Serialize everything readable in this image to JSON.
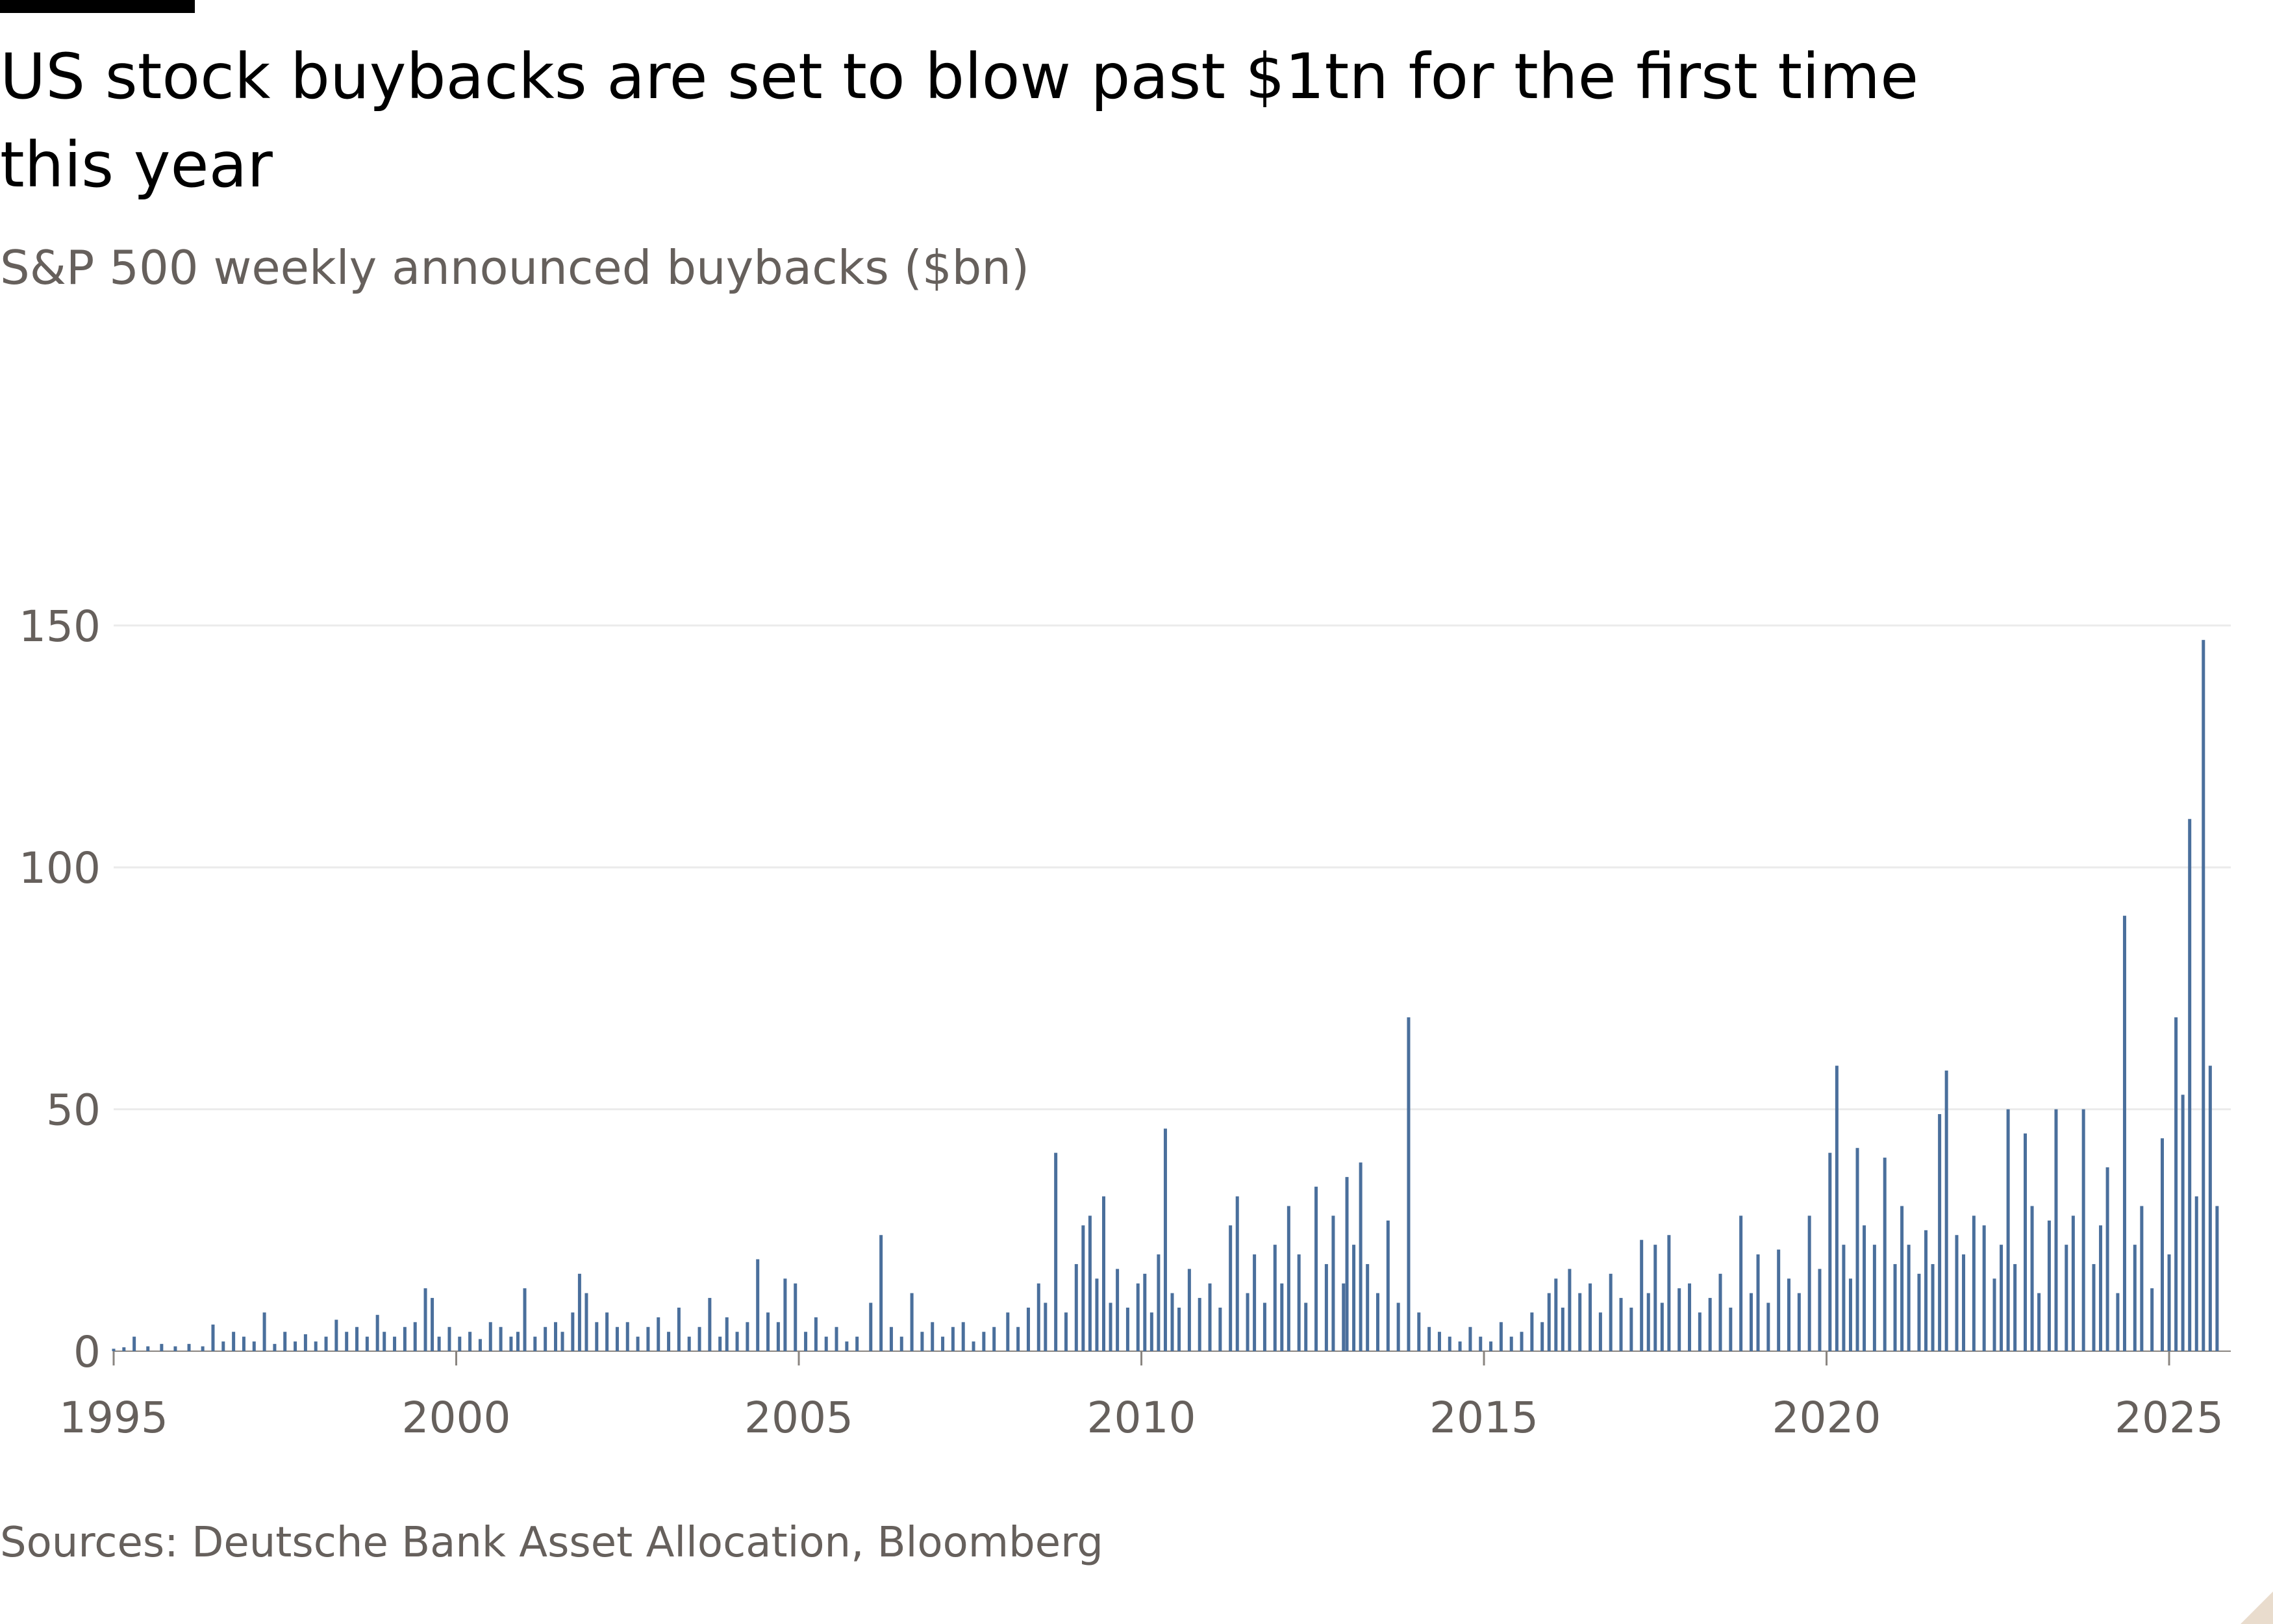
{
  "title": "US stock buybacks are set to blow past $1tn for the first time this year",
  "subtitle": "S&P 500 weekly announced buybacks ($bn)",
  "source": "Sources: Deutsche Bank Asset Allocation, Bloomberg",
  "colors": {
    "bar": "#4a6f9c",
    "grid": "#ebebeb",
    "axis_text": "#66605c",
    "title": "#000000",
    "accent_bar": "#000000",
    "corner_mark": "#e9dccd"
  },
  "chart_data": {
    "type": "bar",
    "title": "US stock buybacks are set to blow past $1tn for the first time this year",
    "subtitle": "S&P 500 weekly announced buybacks ($bn)",
    "xlabel": "",
    "ylabel": "",
    "xlim": [
      1995.0,
      2025.9
    ],
    "ylim": [
      0,
      192
    ],
    "y_ticks": [
      0,
      50,
      100,
      150
    ],
    "x_ticks": [
      1995,
      2000,
      2005,
      2010,
      2015,
      2020,
      2025
    ],
    "grid": true,
    "legend": "none",
    "series": [
      {
        "values": [
          [
            1995.0,
            0.5
          ],
          [
            1995.15,
            0.8
          ],
          [
            1995.3,
            3
          ],
          [
            1995.5,
            1
          ],
          [
            1995.7,
            1.5
          ],
          [
            1995.9,
            1
          ],
          [
            1996.1,
            1.5
          ],
          [
            1996.3,
            1
          ],
          [
            1996.45,
            5.5
          ],
          [
            1996.6,
            2
          ],
          [
            1996.75,
            4
          ],
          [
            1996.9,
            3
          ],
          [
            1997.05,
            2
          ],
          [
            1997.2,
            8
          ],
          [
            1997.35,
            1.5
          ],
          [
            1997.5,
            4
          ],
          [
            1997.65,
            2
          ],
          [
            1997.8,
            3.5
          ],
          [
            1997.95,
            2
          ],
          [
            1998.1,
            3
          ],
          [
            1998.25,
            6.5
          ],
          [
            1998.4,
            4
          ],
          [
            1998.55,
            5
          ],
          [
            1998.7,
            3
          ],
          [
            1998.85,
            7.5
          ],
          [
            1998.95,
            4
          ],
          [
            1999.1,
            3
          ],
          [
            1999.25,
            5
          ],
          [
            1999.4,
            6
          ],
          [
            1999.55,
            13
          ],
          [
            1999.65,
            11
          ],
          [
            1999.75,
            3
          ],
          [
            1999.9,
            5
          ],
          [
            2000.05,
            3
          ],
          [
            2000.2,
            4
          ],
          [
            2000.35,
            2.5
          ],
          [
            2000.5,
            6
          ],
          [
            2000.65,
            5
          ],
          [
            2000.8,
            3
          ],
          [
            2000.9,
            4
          ],
          [
            2001.0,
            13
          ],
          [
            2001.15,
            3
          ],
          [
            2001.3,
            5
          ],
          [
            2001.45,
            6
          ],
          [
            2001.55,
            4
          ],
          [
            2001.7,
            8
          ],
          [
            2001.8,
            16
          ],
          [
            2001.9,
            12
          ],
          [
            2002.05,
            6
          ],
          [
            2002.2,
            8
          ],
          [
            2002.35,
            5
          ],
          [
            2002.5,
            6
          ],
          [
            2002.65,
            3
          ],
          [
            2002.8,
            5
          ],
          [
            2002.95,
            7
          ],
          [
            2003.1,
            4
          ],
          [
            2003.25,
            9
          ],
          [
            2003.4,
            3
          ],
          [
            2003.55,
            5
          ],
          [
            2003.7,
            11
          ],
          [
            2003.85,
            3
          ],
          [
            2003.95,
            7
          ],
          [
            2004.1,
            4
          ],
          [
            2004.25,
            6
          ],
          [
            2004.4,
            19
          ],
          [
            2004.55,
            8
          ],
          [
            2004.7,
            6
          ],
          [
            2004.8,
            15
          ],
          [
            2004.95,
            14
          ],
          [
            2005.1,
            4
          ],
          [
            2005.25,
            7
          ],
          [
            2005.4,
            3
          ],
          [
            2005.55,
            5
          ],
          [
            2005.7,
            2
          ],
          [
            2005.85,
            3
          ],
          [
            2006.05,
            10
          ],
          [
            2006.2,
            24
          ],
          [
            2006.35,
            5
          ],
          [
            2006.5,
            3
          ],
          [
            2006.65,
            12
          ],
          [
            2006.8,
            4
          ],
          [
            2006.95,
            6
          ],
          [
            2007.1,
            3
          ],
          [
            2007.25,
            5
          ],
          [
            2007.4,
            6
          ],
          [
            2007.55,
            2
          ],
          [
            2007.7,
            4
          ],
          [
            2007.85,
            5
          ],
          [
            2008.05,
            8
          ],
          [
            2008.2,
            5
          ],
          [
            2008.35,
            9
          ],
          [
            2008.5,
            14
          ],
          [
            2008.6,
            10
          ],
          [
            2008.75,
            41
          ],
          [
            2008.9,
            8
          ],
          [
            2009.05,
            18
          ],
          [
            2009.15,
            26
          ],
          [
            2009.25,
            28
          ],
          [
            2009.35,
            15
          ],
          [
            2009.45,
            32
          ],
          [
            2009.55,
            10
          ],
          [
            2009.65,
            17
          ],
          [
            2009.8,
            9
          ],
          [
            2009.95,
            14
          ],
          [
            2010.05,
            16
          ],
          [
            2010.15,
            8
          ],
          [
            2010.25,
            20
          ],
          [
            2010.35,
            46
          ],
          [
            2010.45,
            12
          ],
          [
            2010.55,
            9
          ],
          [
            2010.7,
            17
          ],
          [
            2010.85,
            11
          ],
          [
            2011.0,
            14
          ],
          [
            2011.15,
            9
          ],
          [
            2011.3,
            26
          ],
          [
            2011.4,
            32
          ],
          [
            2011.55,
            12
          ],
          [
            2011.65,
            20
          ],
          [
            2011.8,
            10
          ],
          [
            2011.95,
            22
          ],
          [
            2012.05,
            14
          ],
          [
            2012.15,
            30
          ],
          [
            2012.3,
            20
          ],
          [
            2012.4,
            10
          ],
          [
            2012.55,
            34
          ],
          [
            2012.7,
            18
          ],
          [
            2012.8,
            28
          ],
          [
            2012.95,
            14
          ],
          [
            2013.0,
            36
          ],
          [
            2013.1,
            22
          ],
          [
            2013.2,
            39
          ],
          [
            2013.3,
            18
          ],
          [
            2013.45,
            12
          ],
          [
            2013.6,
            27
          ],
          [
            2013.75,
            10
          ],
          [
            2013.9,
            69
          ],
          [
            2014.05,
            8
          ],
          [
            2014.2,
            5
          ],
          [
            2014.35,
            4
          ],
          [
            2014.5,
            3
          ],
          [
            2014.65,
            2
          ],
          [
            2014.8,
            5
          ],
          [
            2014.95,
            3
          ],
          [
            2015.1,
            2
          ],
          [
            2015.25,
            6
          ],
          [
            2015.4,
            3
          ],
          [
            2015.55,
            4
          ],
          [
            2015.7,
            8
          ],
          [
            2015.85,
            6
          ],
          [
            2015.95,
            12
          ],
          [
            2016.05,
            15
          ],
          [
            2016.15,
            9
          ],
          [
            2016.25,
            17
          ],
          [
            2016.4,
            12
          ],
          [
            2016.55,
            14
          ],
          [
            2016.7,
            8
          ],
          [
            2016.85,
            16
          ],
          [
            2017.0,
            11
          ],
          [
            2017.15,
            9
          ],
          [
            2017.3,
            23
          ],
          [
            2017.4,
            12
          ],
          [
            2017.5,
            22
          ],
          [
            2017.6,
            10
          ],
          [
            2017.7,
            24
          ],
          [
            2017.85,
            13
          ],
          [
            2018.0,
            14
          ],
          [
            2018.15,
            8
          ],
          [
            2018.3,
            11
          ],
          [
            2018.45,
            16
          ],
          [
            2018.6,
            9
          ],
          [
            2018.75,
            28
          ],
          [
            2018.9,
            12
          ],
          [
            2019.0,
            20
          ],
          [
            2019.15,
            10
          ],
          [
            2019.3,
            21
          ],
          [
            2019.45,
            15
          ],
          [
            2019.6,
            12
          ],
          [
            2019.75,
            28
          ],
          [
            2019.9,
            17
          ],
          [
            2020.05,
            41
          ],
          [
            2020.15,
            59
          ],
          [
            2020.25,
            22
          ],
          [
            2020.35,
            15
          ],
          [
            2020.45,
            42
          ],
          [
            2020.55,
            26
          ],
          [
            2020.7,
            22
          ],
          [
            2020.85,
            40
          ],
          [
            2021.0,
            18
          ],
          [
            2021.1,
            30
          ],
          [
            2021.2,
            22
          ],
          [
            2021.35,
            16
          ],
          [
            2021.45,
            25
          ],
          [
            2021.55,
            18
          ],
          [
            2021.65,
            49
          ],
          [
            2021.75,
            58
          ],
          [
            2021.9,
            24
          ],
          [
            2022.0,
            20
          ],
          [
            2022.15,
            28
          ],
          [
            2022.3,
            26
          ],
          [
            2022.45,
            15
          ],
          [
            2022.55,
            22
          ],
          [
            2022.65,
            50
          ],
          [
            2022.75,
            18
          ],
          [
            2022.9,
            45
          ],
          [
            2023.0,
            30
          ],
          [
            2023.1,
            12
          ],
          [
            2023.25,
            27
          ],
          [
            2023.35,
            50
          ],
          [
            2023.5,
            22
          ],
          [
            2023.6,
            28
          ],
          [
            2023.75,
            50
          ],
          [
            2023.9,
            18
          ],
          [
            2024.0,
            26
          ],
          [
            2024.1,
            38
          ],
          [
            2024.25,
            12
          ],
          [
            2024.35,
            90
          ],
          [
            2024.5,
            22
          ],
          [
            2024.6,
            30
          ],
          [
            2024.75,
            13
          ],
          [
            2024.9,
            44
          ],
          [
            2025.0,
            20
          ],
          [
            2025.1,
            69
          ],
          [
            2025.2,
            53
          ],
          [
            2025.3,
            110
          ],
          [
            2025.4,
            32
          ],
          [
            2025.5,
            147
          ],
          [
            2025.6,
            59
          ],
          [
            2025.7,
            30
          ]
        ]
      }
    ]
  }
}
